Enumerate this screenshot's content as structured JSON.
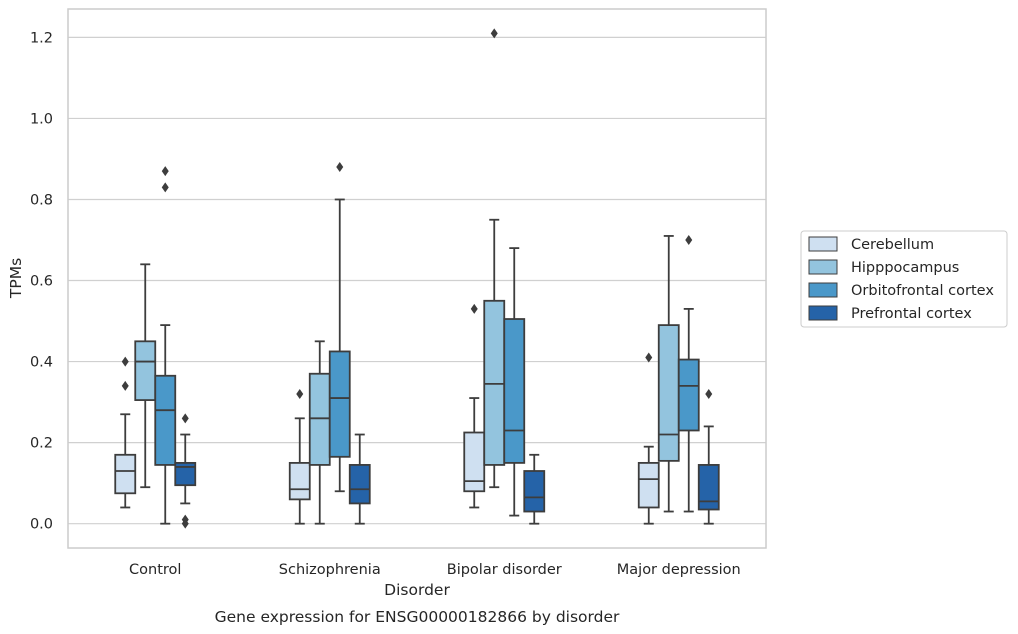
{
  "chart_data": {
    "type": "box",
    "caption": "Gene expression for ENSG00000182866 by disorder",
    "xlabel": "Disorder",
    "ylabel": "TPMs",
    "ylim": [
      -0.06,
      1.27
    ],
    "yticks": [
      0.0,
      0.2,
      0.4,
      0.6,
      0.8,
      1.0,
      1.2
    ],
    "grid": "horizontal",
    "legend_position": "right",
    "categories": [
      "Control",
      "Schizophrenia",
      "Bipolar disorder",
      "Major depression"
    ],
    "series": [
      {
        "name": "Cerebellum",
        "color": "#cfe0f1",
        "boxes": [
          {
            "q1": 0.075,
            "median": 0.13,
            "q3": 0.17,
            "whisker_low": 0.04,
            "whisker_high": 0.27,
            "outliers": [
              0.34,
              0.4
            ]
          },
          {
            "q1": 0.06,
            "median": 0.085,
            "q3": 0.15,
            "whisker_low": 0.0,
            "whisker_high": 0.26,
            "outliers": [
              0.32
            ]
          },
          {
            "q1": 0.08,
            "median": 0.105,
            "q3": 0.225,
            "whisker_low": 0.04,
            "whisker_high": 0.31,
            "outliers": [
              0.53
            ]
          },
          {
            "q1": 0.04,
            "median": 0.11,
            "q3": 0.15,
            "whisker_low": 0.0,
            "whisker_high": 0.19,
            "outliers": [
              0.41
            ]
          }
        ]
      },
      {
        "name": "Hipppocampus",
        "color": "#93c4de",
        "boxes": [
          {
            "q1": 0.305,
            "median": 0.4,
            "q3": 0.45,
            "whisker_low": 0.09,
            "whisker_high": 0.64,
            "outliers": []
          },
          {
            "q1": 0.145,
            "median": 0.26,
            "q3": 0.37,
            "whisker_low": 0.0,
            "whisker_high": 0.45,
            "outliers": []
          },
          {
            "q1": 0.145,
            "median": 0.345,
            "q3": 0.55,
            "whisker_low": 0.09,
            "whisker_high": 0.75,
            "outliers": [
              1.21
            ]
          },
          {
            "q1": 0.155,
            "median": 0.22,
            "q3": 0.49,
            "whisker_low": 0.03,
            "whisker_high": 0.71,
            "outliers": []
          }
        ]
      },
      {
        "name": "Orbitofrontal cortex",
        "color": "#4a98c9",
        "boxes": [
          {
            "q1": 0.145,
            "median": 0.28,
            "q3": 0.365,
            "whisker_low": 0.0,
            "whisker_high": 0.49,
            "outliers": [
              0.83,
              0.87
            ]
          },
          {
            "q1": 0.165,
            "median": 0.31,
            "q3": 0.425,
            "whisker_low": 0.08,
            "whisker_high": 0.8,
            "outliers": [
              0.88
            ]
          },
          {
            "q1": 0.15,
            "median": 0.23,
            "q3": 0.505,
            "whisker_low": 0.02,
            "whisker_high": 0.68,
            "outliers": []
          },
          {
            "q1": 0.23,
            "median": 0.34,
            "q3": 0.405,
            "whisker_low": 0.03,
            "whisker_high": 0.53,
            "outliers": [
              0.7
            ]
          }
        ]
      },
      {
        "name": "Prefrontal cortex",
        "color": "#2563a8",
        "boxes": [
          {
            "q1": 0.095,
            "median": 0.14,
            "q3": 0.15,
            "whisker_low": 0.05,
            "whisker_high": 0.22,
            "outliers": [
              0.26,
              0.01,
              0.0
            ]
          },
          {
            "q1": 0.05,
            "median": 0.085,
            "q3": 0.145,
            "whisker_low": 0.0,
            "whisker_high": 0.22,
            "outliers": []
          },
          {
            "q1": 0.03,
            "median": 0.065,
            "q3": 0.13,
            "whisker_low": 0.0,
            "whisker_high": 0.17,
            "outliers": []
          },
          {
            "q1": 0.035,
            "median": 0.055,
            "q3": 0.145,
            "whisker_low": 0.0,
            "whisker_high": 0.24,
            "outliers": [
              0.32
            ]
          }
        ]
      }
    ]
  }
}
